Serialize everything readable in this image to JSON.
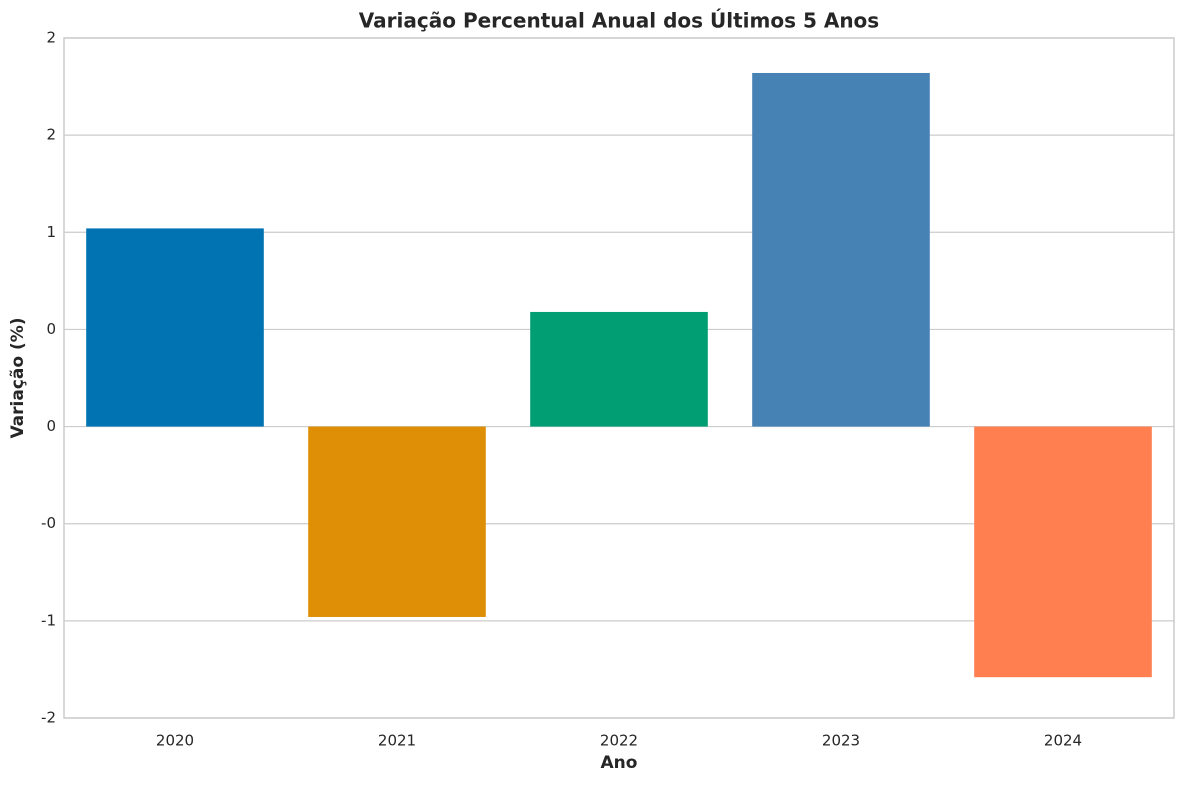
{
  "chart_data": {
    "type": "bar",
    "title": "Variação Percentual Anual dos Últimos 5 Anos",
    "x_label": "Ano",
    "y_label": "Variação (%)",
    "categories": [
      "2020",
      "2021",
      "2022",
      "2023",
      "2024"
    ],
    "values": [
      1.02,
      -0.98,
      0.59,
      1.82,
      -1.29
    ],
    "colors": [
      "#0173b2",
      "#de8f05",
      "#029e73",
      "#4682b4",
      "#ff7f50"
    ],
    "ylim": [
      -1.5,
      2.0
    ],
    "yticks": [
      {
        "value": -1.5,
        "label": "-2"
      },
      {
        "value": -1.0,
        "label": "-1"
      },
      {
        "value": -0.5,
        "label": "-0"
      },
      0,
      {
        "value": 0.5,
        "label": "0"
      },
      {
        "value": 1.0,
        "label": "1"
      },
      {
        "value": 1.5,
        "label": "2"
      },
      2
    ],
    "grid": true
  }
}
